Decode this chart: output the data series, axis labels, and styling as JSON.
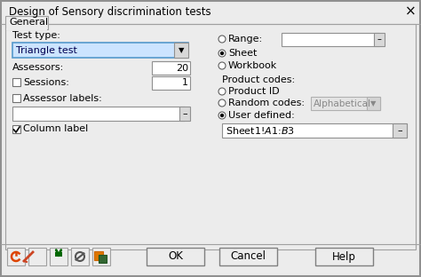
{
  "title": "Design of Sensory discrimination tests",
  "tab_label": "General",
  "left_panel": {
    "test_type_label": "Test type:",
    "dropdown_text": "Triangle test",
    "assessors_label": "Assessors:",
    "assessors_value": "20",
    "sessions_label": "Sessions:",
    "sessions_value": "1",
    "assessor_labels_label": "Assessor labels:",
    "column_label": "Column label"
  },
  "right_panel": {
    "range_label": "Range:",
    "sheet_label": "Sheet",
    "workbook_label": "Workbook",
    "product_codes_label": "Product codes:",
    "product_id_label": "Product ID",
    "random_codes_label": "Random codes:",
    "random_codes_dropdown": "Alphabetical",
    "user_defined_label": "User defined:",
    "user_defined_value": "Sheet1!$A$1:$B$3"
  },
  "buttons": [
    "OK",
    "Cancel",
    "Help"
  ],
  "dialog_bg": "#ececec",
  "white": "#ffffff",
  "light_gray": "#e8e8e8",
  "mid_gray": "#c8c8c8",
  "border_color": "#a0a0a0",
  "text_color": "#000000",
  "blue_sel_bg": "#cce4ff",
  "blue_sel_border": "#5599cc",
  "icon_bg": "#ececec"
}
